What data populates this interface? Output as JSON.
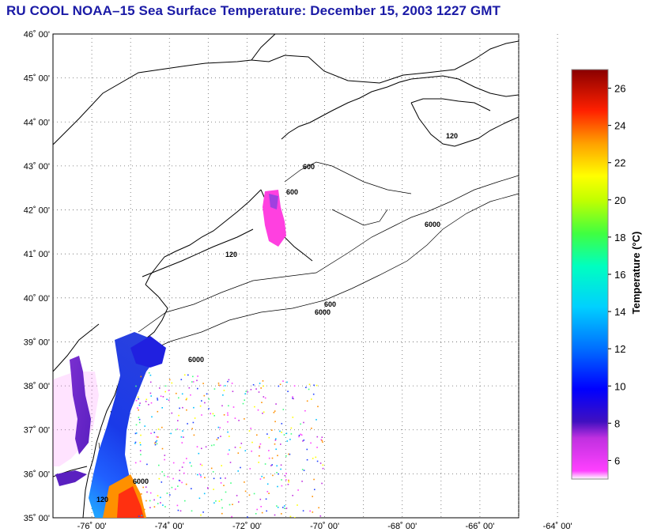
{
  "title": "RU COOL  NOAA–15  Sea Surface Temperature:  December 15, 2003 1227 GMT",
  "map": {
    "lat_labels": [
      "46˚ 00'",
      "45˚ 00'",
      "44˚ 00'",
      "43˚ 00'",
      "42˚ 00'",
      "41˚ 00'",
      "40˚ 00'",
      "39˚ 00'",
      "38˚ 00'",
      "37˚ 00'",
      "36˚ 00'",
      "35˚ 00'"
    ],
    "lon_labels": [
      "-76˚ 00'",
      "-74˚ 00'",
      "-72˚ 00'",
      "-70˚ 00'",
      "-68˚ 00'",
      "-66˚ 00'",
      "-64˚ 00'"
    ],
    "lat_range": [
      35,
      46
    ],
    "lon_range": [
      -77,
      -65
    ],
    "contour_labels": [
      "120",
      "600",
      "6000"
    ]
  },
  "colorbar": {
    "label": "Temperature (°C)",
    "ticks": [
      "26",
      "24",
      "22",
      "20",
      "18",
      "16",
      "14",
      "12",
      "10",
      "8",
      "6"
    ],
    "range": [
      5,
      27
    ]
  },
  "colors": {
    "title": "#1a1aa6",
    "cold": "#ff40ff",
    "warm": "#ff2000"
  }
}
